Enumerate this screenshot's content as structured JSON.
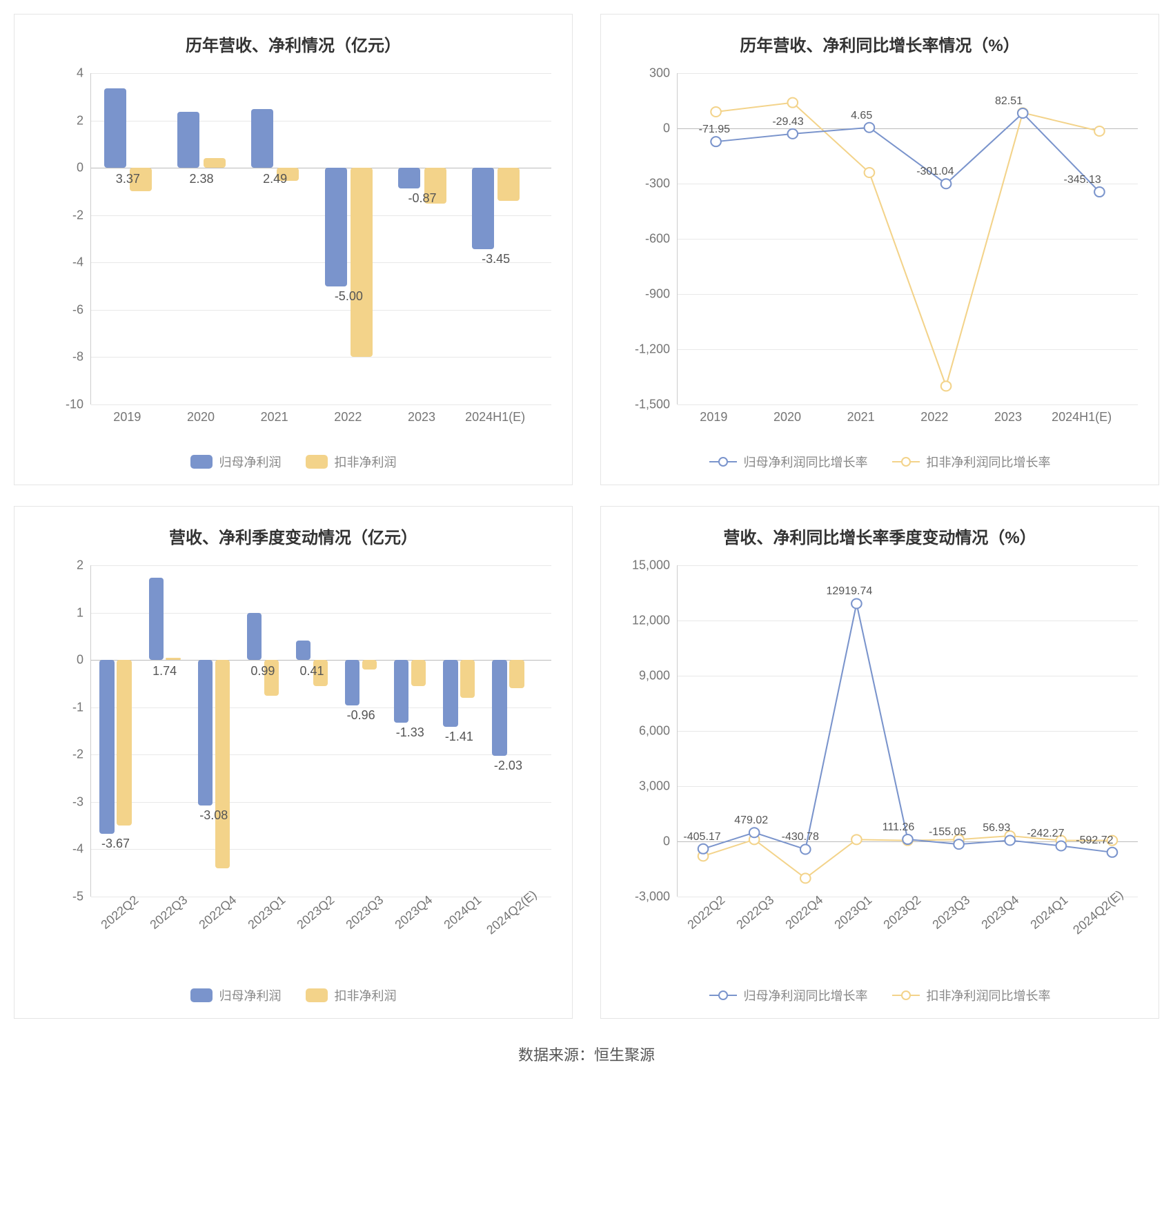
{
  "footer": "数据来源：恒生聚源",
  "colors": {
    "blue": "#7a94cc",
    "yellow": "#f3d38a",
    "grid": "#e8e8e8",
    "axis_text": "#757575",
    "title_text": "#333333",
    "label_text": "#555555"
  },
  "chart1": {
    "type": "bar",
    "title": "历年营收、净利情况（亿元）",
    "categories": [
      "2019",
      "2020",
      "2021",
      "2022",
      "2023",
      "2024H1(E)"
    ],
    "ylim": [
      -10,
      4
    ],
    "ytick_step": 2,
    "series": [
      {
        "name": "归母净利润",
        "color": "#7a94cc",
        "labels": [
          "3.37",
          "2.38",
          "2.49",
          "-5.00",
          "-0.87",
          "-3.45"
        ],
        "values": [
          3.37,
          2.38,
          2.49,
          -5.0,
          -0.87,
          -3.45
        ]
      },
      {
        "name": "扣非净利润",
        "color": "#f3d38a",
        "labels": [
          "",
          "",
          "",
          "",
          "",
          ""
        ],
        "values": [
          -1.0,
          0.4,
          -0.55,
          -8.0,
          -1.5,
          -1.4
        ]
      }
    ],
    "bar_width": 0.3,
    "bar_gap": 0.05,
    "title_fontsize": 24,
    "tick_fontsize": 18,
    "label_fontsize": 18
  },
  "chart2": {
    "type": "line",
    "title": "历年营收、净利同比增长率情况（%）",
    "categories": [
      "2019",
      "2020",
      "2021",
      "2022",
      "2023",
      "2024H1(E)"
    ],
    "ylim": [
      -1500,
      300
    ],
    "ytick_step": 300,
    "series": [
      {
        "name": "归母净利润同比增长率",
        "color": "#7a94cc",
        "labels": [
          "-71.95",
          "-29.43",
          "4.65",
          "-301.04",
          "82.51",
          "-345.13"
        ],
        "values": [
          -71.95,
          -29.43,
          4.65,
          -301.04,
          82.51,
          -345.13
        ]
      },
      {
        "name": "扣非净利润同比增长率",
        "color": "#f3d38a",
        "labels": [
          "",
          "",
          "",
          "",
          "",
          ""
        ],
        "values": [
          90,
          140,
          -240,
          -1400,
          85,
          -15
        ]
      }
    ],
    "marker_radius": 7,
    "line_width": 2,
    "title_fontsize": 24,
    "tick_fontsize": 18,
    "label_fontsize": 16
  },
  "chart3": {
    "type": "bar",
    "title": "营收、净利季度变动情况（亿元）",
    "categories": [
      "2022Q2",
      "2022Q3",
      "2022Q4",
      "2023Q1",
      "2023Q2",
      "2023Q3",
      "2023Q4",
      "2024Q1",
      "2024Q2(E)"
    ],
    "ylim": [
      -5,
      2
    ],
    "ytick_step": 1,
    "series": [
      {
        "name": "归母净利润",
        "color": "#7a94cc",
        "labels": [
          "-3.67",
          "1.74",
          "-3.08",
          "0.99",
          "0.41",
          "-0.96",
          "-1.33",
          "-1.41",
          "-2.03"
        ],
        "values": [
          -3.67,
          1.74,
          -3.08,
          0.99,
          0.41,
          -0.96,
          -1.33,
          -1.41,
          -2.03
        ]
      },
      {
        "name": "扣非净利润",
        "color": "#f3d38a",
        "labels": [
          "",
          "",
          "",
          "",
          "",
          "",
          "",
          "",
          ""
        ],
        "values": [
          -3.5,
          0.05,
          -4.4,
          -0.75,
          -0.55,
          -0.2,
          -0.55,
          -0.8,
          -0.6
        ]
      }
    ],
    "bar_width": 0.3,
    "bar_gap": 0.05,
    "rotated_x": true,
    "title_fontsize": 24,
    "tick_fontsize": 18,
    "label_fontsize": 18
  },
  "chart4": {
    "type": "line",
    "title": "营收、净利同比增长率季度变动情况（%）",
    "categories": [
      "2022Q2",
      "2022Q3",
      "2022Q4",
      "2023Q1",
      "2023Q2",
      "2023Q3",
      "2023Q4",
      "2024Q1",
      "2024Q2(E)"
    ],
    "ylim": [
      -3000,
      15000
    ],
    "ytick_step": 3000,
    "series": [
      {
        "name": "归母净利润同比增长率",
        "color": "#7a94cc",
        "labels": [
          "-405.17",
          "479.02",
          "-430.78",
          "12919.74",
          "111.26",
          "-155.05",
          "56.93",
          "-242.27",
          "-592.72"
        ],
        "values": [
          -405.17,
          479.02,
          -430.78,
          12919.74,
          111.26,
          -155.05,
          56.93,
          -242.27,
          -592.72
        ]
      },
      {
        "name": "扣非净利润同比增长率",
        "color": "#f3d38a",
        "labels": [
          "",
          "",
          "",
          "",
          "",
          "",
          "",
          "",
          ""
        ],
        "values": [
          -800,
          100,
          -2000,
          100,
          50,
          100,
          300,
          50,
          50
        ]
      }
    ],
    "marker_radius": 7,
    "line_width": 2,
    "rotated_x": true,
    "title_fontsize": 24,
    "tick_fontsize": 18,
    "label_fontsize": 16
  }
}
